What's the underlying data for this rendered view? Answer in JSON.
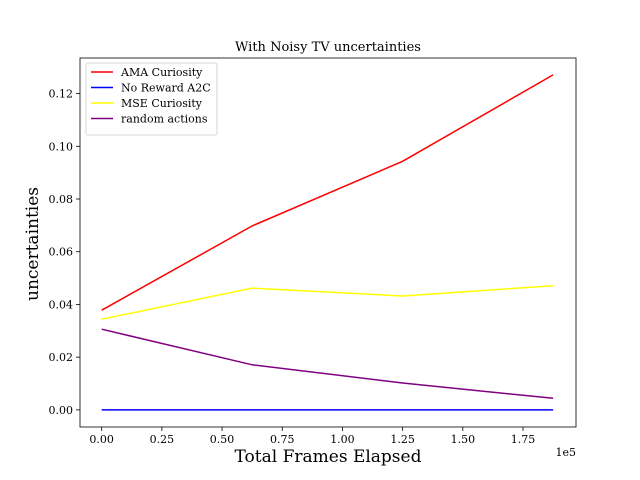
{
  "chart_data": {
    "type": "line",
    "title": "With Noisy TV  uncertainties",
    "xlabel": "Total Frames Elapsed",
    "ylabel": "uncertainties",
    "x_offset_label": "1e5",
    "x": [
      0,
      0.625,
      1.25,
      1.875
    ],
    "xlim": [
      -0.09,
      1.97
    ],
    "ylim": [
      -0.0065,
      0.1335
    ],
    "x_ticks": [
      0.0,
      0.25,
      0.5,
      0.75,
      1.0,
      1.25,
      1.5,
      1.75
    ],
    "x_tick_labels": [
      "0.00",
      "0.25",
      "0.50",
      "0.75",
      "1.00",
      "1.25",
      "1.50",
      "1.75"
    ],
    "y_ticks": [
      0.0,
      0.02,
      0.04,
      0.06,
      0.08,
      0.1,
      0.12
    ],
    "y_tick_labels": [
      "0.00",
      "0.02",
      "0.04",
      "0.06",
      "0.08",
      "0.10",
      "0.12"
    ],
    "grid": false,
    "legend_position": "top-left",
    "series": [
      {
        "name": "AMA Curiosity",
        "color": "#ff0000",
        "values": [
          0.0378,
          0.0698,
          0.0943,
          0.1271
        ]
      },
      {
        "name": "No Reward A2C",
        "color": "#0000ff",
        "values": [
          0.0,
          0.0,
          0.0,
          0.0
        ]
      },
      {
        "name": "MSE Curiosity",
        "color": "#ffff00",
        "values": [
          0.0344,
          0.0462,
          0.0432,
          0.0471
        ]
      },
      {
        "name": "random actions",
        "color": "#800080",
        "values": [
          0.0306,
          0.0171,
          0.0102,
          0.0044
        ]
      }
    ]
  }
}
